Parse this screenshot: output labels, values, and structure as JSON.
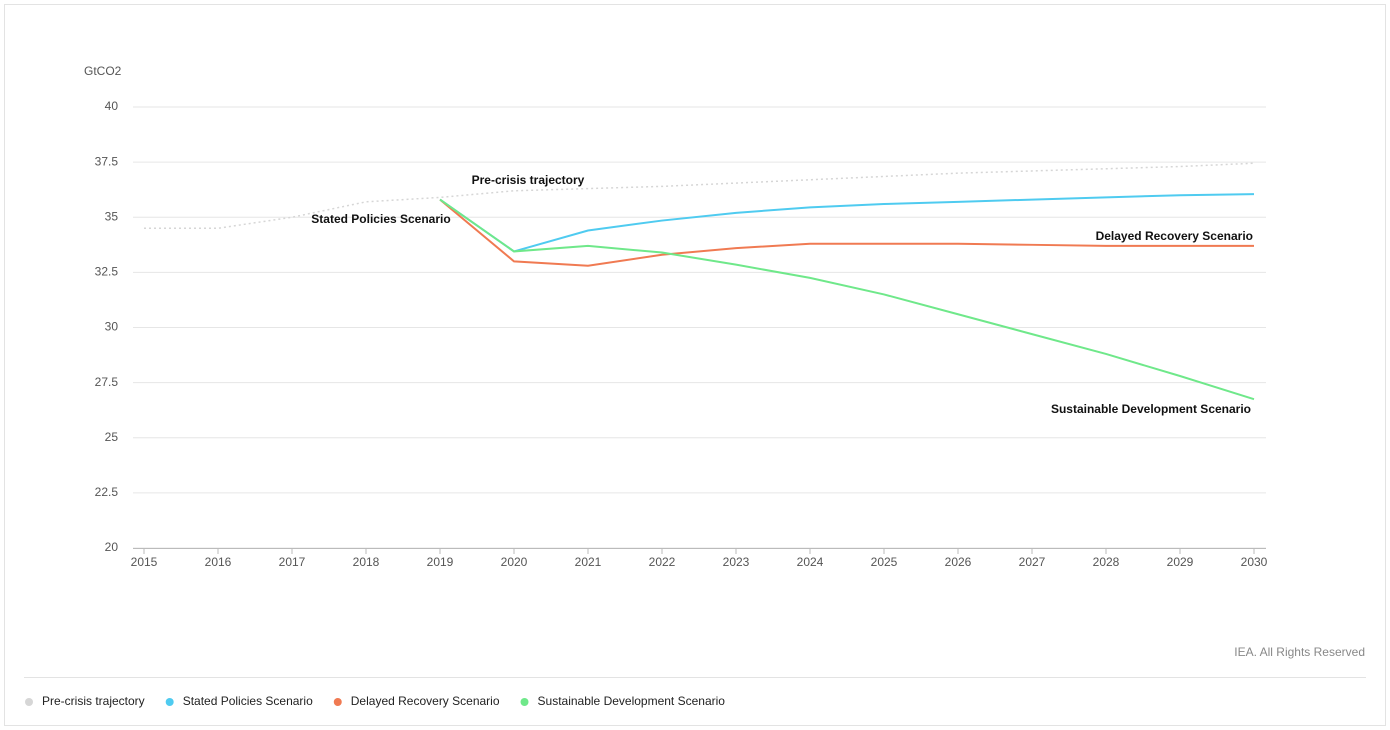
{
  "chart_data": {
    "type": "line",
    "y_label": "GtCO2",
    "credit": "IEA. All Rights Reserved",
    "categories": [
      "2015",
      "2016",
      "2017",
      "2018",
      "2019",
      "2020",
      "2021",
      "2022",
      "2023",
      "2024",
      "2025",
      "2026",
      "2027",
      "2028",
      "2029",
      "2030"
    ],
    "ylim": [
      20,
      40
    ],
    "yticks": [
      20,
      22.5,
      25,
      27.5,
      30,
      32.5,
      35,
      37.5,
      40
    ],
    "grid": true,
    "legend": "bottom",
    "series": [
      {
        "name": "Pre-crisis trajectory",
        "color": "#d6d6d6",
        "dashed": true,
        "values": [
          34.5,
          34.5,
          35.0,
          35.7,
          35.9,
          36.2,
          36.3,
          36.4,
          36.55,
          36.7,
          36.85,
          37.0,
          37.1,
          37.2,
          37.3,
          37.45
        ]
      },
      {
        "name": "Stated Policies Scenario",
        "color": "#4fcbf0",
        "values": [
          null,
          null,
          null,
          null,
          35.8,
          33.45,
          34.4,
          34.85,
          35.2,
          35.45,
          35.6,
          35.7,
          35.8,
          35.9,
          36.0,
          36.05
        ]
      },
      {
        "name": "Delayed Recovery Scenario",
        "color": "#f07a52",
        "values": [
          null,
          null,
          null,
          null,
          35.8,
          33.0,
          32.8,
          33.3,
          33.6,
          33.8,
          33.8,
          33.8,
          33.75,
          33.7,
          33.7,
          33.7
        ]
      },
      {
        "name": "Sustainable Development Scenario",
        "color": "#6fe88a",
        "values": [
          null,
          null,
          null,
          null,
          35.8,
          33.45,
          33.7,
          33.4,
          32.85,
          32.25,
          31.5,
          30.6,
          29.7,
          28.8,
          27.8,
          26.75
        ]
      }
    ]
  }
}
